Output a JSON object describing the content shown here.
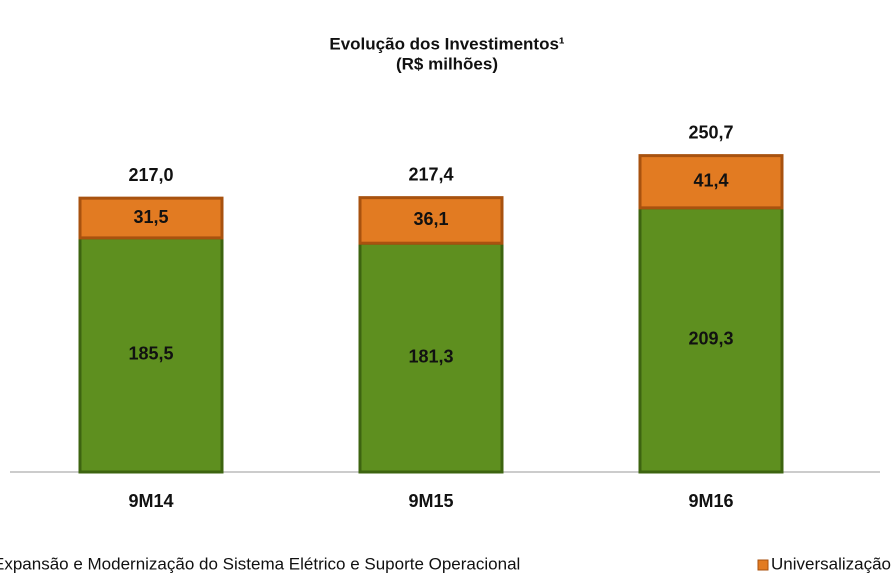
{
  "chart_data": {
    "type": "stacked_bar",
    "title": "Evolução dos Investimentos¹",
    "subtitle": "(R$ milhões)",
    "categories": [
      "9M14",
      "9M15",
      "9M16"
    ],
    "series": [
      {
        "name": "Expansão e Modernização do Sistema Elétrico e Suporte Operacional",
        "color": "#5e8f1f",
        "values": [
          185.5,
          181.3,
          209.3
        ],
        "value_labels": [
          "185,5",
          "181,3",
          "209,3"
        ]
      },
      {
        "name": "Universalização",
        "color": "#e27b22",
        "values": [
          31.5,
          36.1,
          41.4
        ],
        "value_labels": [
          "31,5",
          "36,1",
          "41,4"
        ]
      }
    ],
    "totals": [
      217.0,
      217.4,
      250.7
    ],
    "total_labels": [
      "217,0",
      "217,4",
      "250,7"
    ]
  }
}
